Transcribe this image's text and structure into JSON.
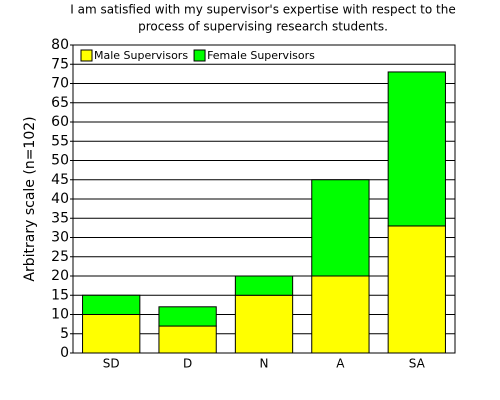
{
  "chart_data": {
    "type": "stacked_bar",
    "title": [
      "I am satisfied with my supervisor's expertise with respect to the",
      "process of supervising research students."
    ],
    "y_label": "Arbitrary scale (n=102)",
    "categories": [
      "SD",
      "D",
      "N",
      "A",
      "SA"
    ],
    "series": [
      {
        "name": "Male Supervisors",
        "color": "#ffff00",
        "values": [
          10,
          7,
          15,
          20,
          33
        ]
      },
      {
        "name": "Female Supervisors",
        "color": "#00ff00",
        "values": [
          5,
          5,
          5,
          25,
          40
        ]
      }
    ],
    "ylim": [
      0,
      80
    ],
    "yticks": [
      0,
      5,
      10,
      15,
      20,
      25,
      30,
      35,
      40,
      45,
      50,
      55,
      60,
      65,
      70,
      75,
      80
    ],
    "grid": true,
    "legend": "top-left"
  }
}
